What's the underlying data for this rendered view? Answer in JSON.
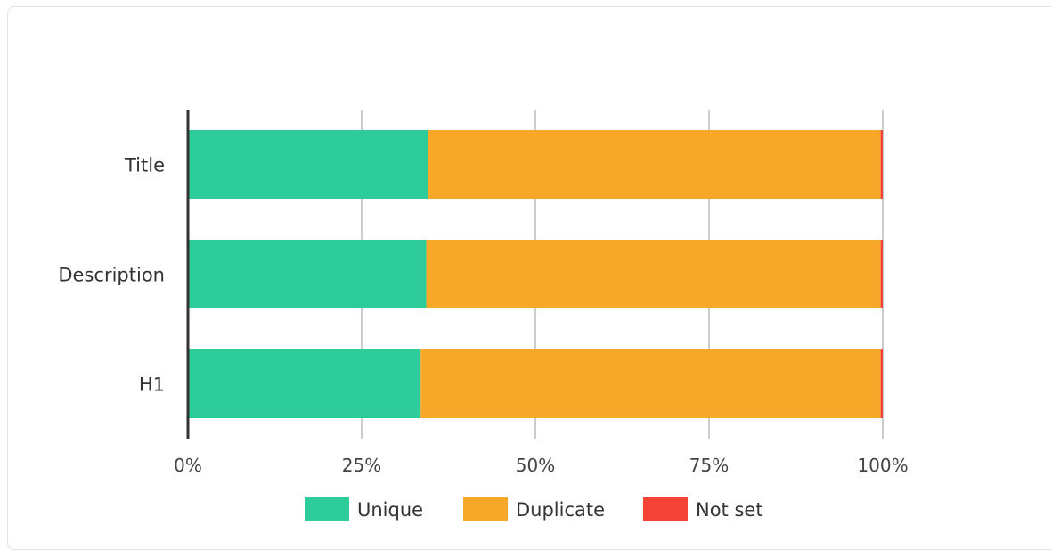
{
  "chart_data": {
    "type": "bar",
    "orientation": "horizontal",
    "stacked": true,
    "percent_stacked": true,
    "categories": [
      "Title",
      "Description",
      "H1"
    ],
    "series": [
      {
        "name": "Unique",
        "color": "#2ecc9a",
        "values": [
          34.5,
          34.3,
          33.5
        ]
      },
      {
        "name": "Duplicate",
        "color": "#f8a828",
        "values": [
          65.2,
          65.4,
          66.2
        ]
      },
      {
        "name": "Not set",
        "color": "#f44336",
        "values": [
          0.3,
          0.3,
          0.3
        ]
      }
    ],
    "xlim": [
      0,
      100
    ],
    "x_ticks": [
      "0%",
      "25%",
      "50%",
      "75%",
      "100%"
    ],
    "grid": true,
    "legend_position": "bottom",
    "title": "",
    "xlabel": "",
    "ylabel": ""
  }
}
